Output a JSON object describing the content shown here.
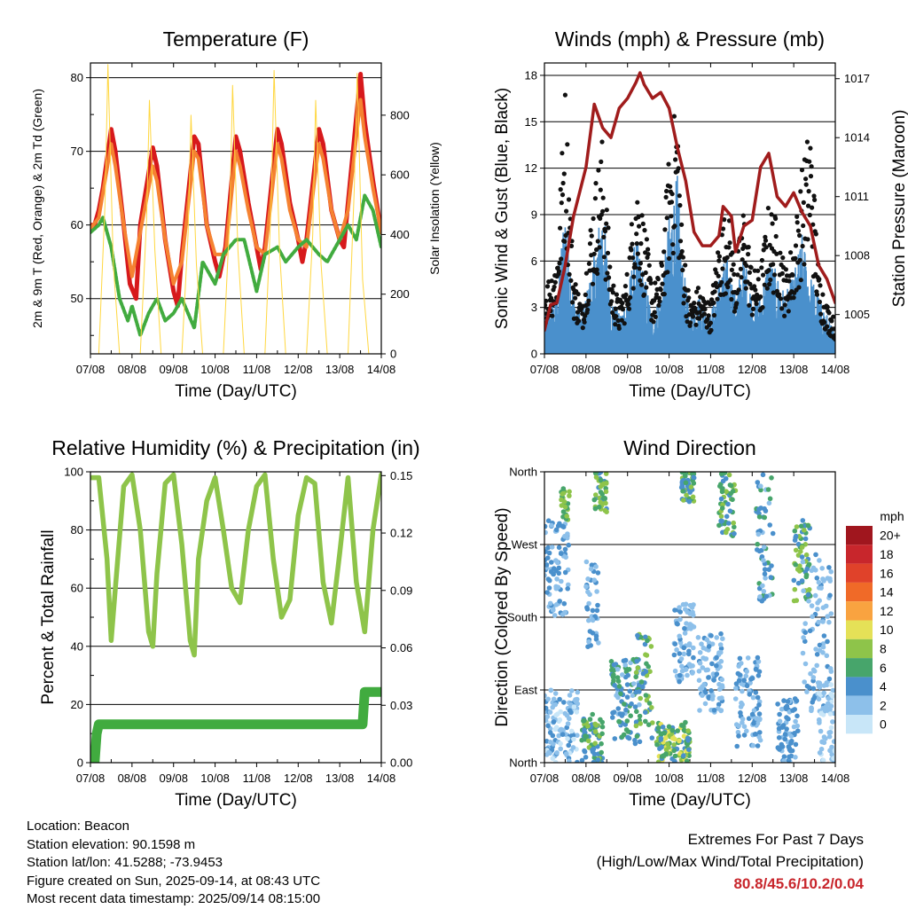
{
  "chart_data": [
    {
      "id": "temperature",
      "type": "line",
      "title": "Temperature (F)",
      "xlabel": "Time (Day/UTC)",
      "ylabel": "2m & 9m T (Red, Orange) & 2m Td (Green)",
      "y2label": "Solar Insolation (Yellow)",
      "x_ticks": [
        "07/08",
        "08/08",
        "09/08",
        "10/08",
        "11/08",
        "12/08",
        "13/08",
        "14/08"
      ],
      "xlim": [
        0,
        7
      ],
      "ylim": [
        42.5,
        82
      ],
      "y_ticks": [
        50,
        60,
        70,
        80
      ],
      "y2lim": [
        0,
        975
      ],
      "y2_ticks": [
        0,
        200,
        400,
        600,
        800
      ],
      "grid": true,
      "series": [
        {
          "color": "#d7191c",
          "x": [
            0,
            0.1,
            0.2,
            0.3,
            0.5,
            0.6,
            0.8,
            0.95,
            1.1,
            1.2,
            1.5,
            1.6,
            1.8,
            2,
            2.1,
            2.2,
            2.5,
            2.6,
            2.8,
            3,
            3.1,
            3.25,
            3.5,
            3.6,
            3.8,
            4,
            4.1,
            4.2,
            4.5,
            4.6,
            4.8,
            5,
            5.1,
            5.2,
            5.5,
            5.6,
            5.8,
            6,
            6.1,
            6.2,
            6.5,
            6.6,
            6.8,
            7
          ],
          "y": [
            60,
            60,
            62,
            65,
            73,
            70,
            60,
            52,
            50,
            60,
            70.5,
            68,
            58,
            51,
            49,
            56,
            72,
            71,
            60,
            55,
            53,
            57,
            72,
            70,
            63,
            57,
            54,
            57,
            73,
            71,
            63,
            58,
            55,
            58,
            73,
            71,
            62,
            58,
            57,
            63,
            80.5,
            74,
            66,
            59
          ]
        },
        {
          "color": "#f58231",
          "x": [
            0,
            0.2,
            0.5,
            0.6,
            0.8,
            1,
            1.2,
            1.5,
            1.6,
            1.8,
            2,
            2.2,
            2.5,
            2.6,
            2.8,
            3,
            3.25,
            3.5,
            3.6,
            3.8,
            4,
            4.2,
            4.5,
            4.6,
            4.8,
            5,
            5.2,
            5.5,
            5.6,
            5.8,
            6,
            6.2,
            6.5,
            6.6,
            6.8,
            7
          ],
          "y": [
            59.5,
            61,
            71,
            68,
            60,
            53,
            59,
            68,
            66,
            58,
            52,
            55,
            70,
            69,
            60,
            56,
            56,
            70,
            68,
            62,
            57,
            56,
            71,
            69,
            62,
            58,
            57,
            71,
            69,
            62,
            58,
            62,
            77,
            72,
            65,
            59
          ]
        },
        {
          "color": "#41ab3f",
          "x": [
            0,
            0.2,
            0.3,
            0.5,
            0.7,
            0.9,
            1,
            1.2,
            1.4,
            1.6,
            1.8,
            2,
            2.2,
            2.5,
            2.7,
            3,
            3.2,
            3.5,
            3.7,
            4,
            4.2,
            4.5,
            4.7,
            5,
            5.2,
            5.5,
            5.7,
            6,
            6.2,
            6.4,
            6.6,
            6.8,
            7
          ],
          "y": [
            59,
            60,
            61,
            57,
            50,
            47,
            49,
            45,
            48,
            50,
            47,
            48,
            50,
            46,
            55,
            52,
            56,
            58,
            58,
            51,
            56,
            57,
            55,
            57,
            58,
            56,
            55,
            58,
            60,
            58,
            64,
            62,
            57
          ]
        },
        {
          "color": "#ffd740",
          "axis": "y2",
          "x": [
            0,
            0.2,
            0.35,
            0.42,
            0.55,
            0.7,
            1,
            1.2,
            1.35,
            1.42,
            1.55,
            1.7,
            2,
            2.2,
            2.35,
            2.42,
            2.55,
            2.7,
            3,
            3.2,
            3.35,
            3.42,
            3.55,
            3.7,
            4,
            4.2,
            4.35,
            4.42,
            4.55,
            4.7,
            5,
            5.2,
            5.35,
            5.42,
            5.55,
            5.7,
            6,
            6.2,
            6.35,
            6.42,
            6.55,
            6.7,
            7
          ],
          "y": [
            0,
            0,
            500,
            970,
            300,
            0,
            0,
            0,
            450,
            850,
            350,
            0,
            0,
            0,
            400,
            800,
            300,
            0,
            0,
            0,
            450,
            900,
            350,
            0,
            0,
            0,
            500,
            950,
            350,
            0,
            0,
            0,
            400,
            850,
            300,
            0,
            0,
            0,
            550,
            940,
            250,
            0,
            0
          ]
        }
      ]
    },
    {
      "id": "winds",
      "type": "line",
      "title": "Winds (mph) & Pressure (mb)",
      "xlabel": "Time (Day/UTC)",
      "ylabel": "Sonic Wind & Gust (Blue, Black)",
      "y2label": "Station Pressure (Maroon)",
      "x_ticks": [
        "07/08",
        "08/08",
        "09/08",
        "10/08",
        "11/08",
        "12/08",
        "13/08",
        "14/08"
      ],
      "xlim": [
        0,
        7
      ],
      "ylim": [
        0,
        18.8
      ],
      "y_ticks": [
        0,
        3,
        6,
        9,
        12,
        15,
        18
      ],
      "y2lim": [
        1003.0,
        1017.8
      ],
      "y2_ticks": [
        1005,
        1008,
        1011,
        1014,
        1017
      ],
      "grid": true,
      "series": [
        {
          "color": "#4a90cc",
          "x": [
            0,
            0.3,
            0.5,
            0.7,
            0.9,
            1.2,
            1.4,
            1.6,
            1.8,
            2,
            2.2,
            2.4,
            2.6,
            2.8,
            3,
            3.2,
            3.3,
            3.5,
            3.7,
            4,
            4.2,
            4.4,
            4.6,
            4.8,
            5,
            5.2,
            5.4,
            5.6,
            5.8,
            6,
            6.2,
            6.4,
            6.6,
            6.8,
            7
          ],
          "y": [
            2,
            3,
            8,
            3,
            2,
            5,
            8,
            3,
            2,
            3,
            6,
            4,
            2,
            3,
            7,
            9,
            5,
            2,
            3,
            2,
            4,
            5,
            3,
            5,
            3,
            3,
            5,
            4,
            3,
            4,
            6,
            4,
            3,
            2,
            1
          ]
        },
        {
          "color": "#111111",
          "x": [
            0,
            0.3,
            0.5,
            0.7,
            0.9,
            1.2,
            1.4,
            1.6,
            1.8,
            2,
            2.2,
            2.4,
            2.6,
            2.8,
            3,
            3.2,
            3.3,
            3.5,
            3.7,
            4,
            4.2,
            4.4,
            4.6,
            4.8,
            5,
            5.2,
            5.4,
            5.6,
            5.8,
            6,
            6.2,
            6.4,
            6.6,
            6.8,
            7
          ],
          "y": [
            4,
            6,
            16,
            5,
            3,
            10,
            13,
            5,
            3,
            5,
            11,
            8,
            4,
            5,
            12,
            15.5,
            8,
            3,
            4,
            3,
            7,
            9,
            5,
            9,
            5,
            5,
            9,
            8,
            5,
            7,
            11,
            14,
            5,
            3,
            2
          ]
        },
        {
          "color": "#a01c1c",
          "axis": "y2",
          "x": [
            0,
            0.15,
            0.3,
            0.5,
            0.7,
            1,
            1.2,
            1.4,
            1.6,
            1.8,
            2,
            2.2,
            2.3,
            2.4,
            2.6,
            2.8,
            3,
            3.2,
            3.4,
            3.6,
            3.8,
            4,
            4.2,
            4.3,
            4.5,
            4.6,
            4.8,
            5,
            5.2,
            5.4,
            5.6,
            5.8,
            6,
            6.2,
            6.4,
            6.6,
            6.8,
            7
          ],
          "y": [
            1004.2,
            1005.5,
            1005.6,
            1007.5,
            1010,
            1012.5,
            1015.7,
            1014.5,
            1014,
            1015.5,
            1016,
            1016.8,
            1017.3,
            1016.7,
            1016,
            1016.3,
            1015.5,
            1013.5,
            1011.8,
            1009.2,
            1008.5,
            1008.5,
            1009,
            1010.5,
            1010,
            1008.2,
            1009.5,
            1009.8,
            1012.5,
            1013.2,
            1011,
            1010.5,
            1011.2,
            1010.2,
            1009.5,
            1007.5,
            1006.8,
            1005.6
          ]
        }
      ]
    },
    {
      "id": "humidity",
      "type": "line",
      "title": "Relative Humidity (%) & Precipitation (in)",
      "xlabel": "Time (Day/UTC)",
      "ylabel": "Percent & Total Rainfall",
      "x_ticks": [
        "07/08",
        "08/08",
        "09/08",
        "10/08",
        "11/08",
        "12/08",
        "13/08",
        "14/08"
      ],
      "xlim": [
        0,
        7
      ],
      "ylim": [
        0,
        100
      ],
      "y_ticks": [
        0,
        20,
        40,
        60,
        80,
        100
      ],
      "y2lim": [
        0,
        0.152
      ],
      "y2_ticks": [
        "0.00",
        "0.03",
        "0.06",
        "0.09",
        "0.12",
        "0.15"
      ],
      "grid": true,
      "series": [
        {
          "color": "#8ec44a",
          "x": [
            0,
            0.2,
            0.4,
            0.5,
            0.6,
            0.8,
            1,
            1.2,
            1.4,
            1.5,
            1.6,
            1.8,
            2,
            2.2,
            2.4,
            2.5,
            2.6,
            2.8,
            3,
            3.2,
            3.4,
            3.6,
            3.8,
            4,
            4.2,
            4.4,
            4.6,
            4.8,
            5,
            5.2,
            5.4,
            5.6,
            5.8,
            6,
            6.2,
            6.4,
            6.6,
            6.8,
            7
          ],
          "y": [
            98,
            98,
            70,
            42,
            60,
            95,
            99,
            80,
            45,
            40,
            65,
            96,
            99,
            75,
            42,
            37,
            70,
            90,
            98,
            80,
            60,
            55,
            80,
            95,
            99,
            70,
            50,
            56,
            85,
            98,
            96,
            62,
            48,
            72,
            98,
            62,
            45,
            80,
            99
          ]
        },
        {
          "color": "#41ab3f",
          "axis": "y2",
          "x": [
            0,
            0.1,
            0.15,
            0.2,
            6.55,
            6.6,
            7
          ],
          "y": [
            0,
            0,
            0.015,
            0.02,
            0.02,
            0.037,
            0.037
          ]
        }
      ]
    },
    {
      "id": "wind_direction",
      "type": "scatter",
      "title": "Wind Direction",
      "xlabel": "Time (Day/UTC)",
      "ylabel": "Direction (Colored By Speed)",
      "x_ticks": [
        "07/08",
        "08/08",
        "09/08",
        "10/08",
        "11/08",
        "12/08",
        "13/08",
        "14/08"
      ],
      "xlim": [
        0,
        7
      ],
      "y_categories": [
        "North",
        "East",
        "South",
        "West",
        "North"
      ],
      "ylim": [
        0,
        360
      ],
      "grid": true,
      "legend": {
        "title": "mph",
        "placement": "right",
        "labels": [
          "20+",
          "18",
          "16",
          "14",
          "12",
          "10",
          "8",
          "6",
          "4",
          "2",
          "0"
        ],
        "colors": [
          "#a0161e",
          "#c8262c",
          "#e0422a",
          "#f06a28",
          "#f9a340",
          "#e5e157",
          "#8ec44a",
          "#47a56b",
          "#4a90cc",
          "#8dc0ea",
          "#c8e6f8"
        ]
      }
    }
  ],
  "footer": {
    "location": "Location: Beacon",
    "elevation": "Station elevation: 90.1598 m",
    "latlon": "Station lat/lon: 41.5288; -73.9453",
    "created": "Figure created on Sun, 2025-09-14, at 08:43 UTC",
    "recent": "Most recent data timestamp: 2025/09/14 08:15:00"
  },
  "extremes": {
    "line1": "Extremes For Past 7 Days",
    "line2": "(High/Low/Max Wind/Total Precipitation)",
    "values": "80.8/45.6/10.2/0.04"
  }
}
